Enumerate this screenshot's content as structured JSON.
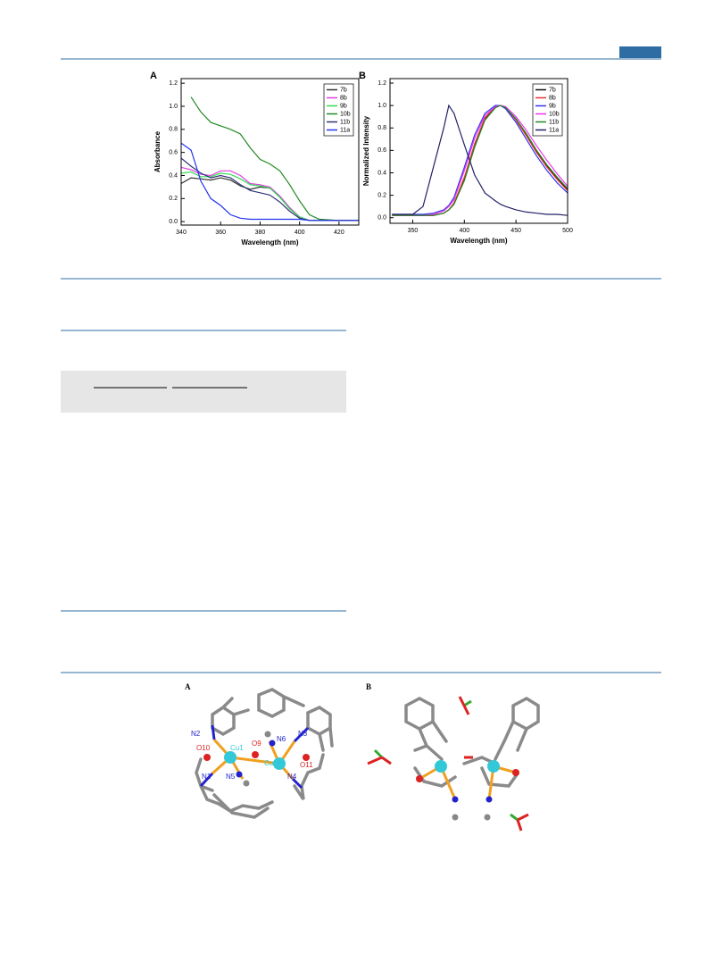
{
  "chart_data": [
    {
      "type": "line",
      "panel_label": "A",
      "x_label": "Wavelength (nm)",
      "y_label": "Absorbance",
      "x": [
        340,
        345,
        350,
        355,
        360,
        365,
        370,
        375,
        380,
        385,
        390,
        395,
        400,
        405,
        410,
        420,
        430
      ],
      "xlim": [
        340,
        430
      ],
      "xticks": [
        340,
        360,
        380,
        400,
        420
      ],
      "ylim": [
        -0.03,
        1.24
      ],
      "yticks": [
        {
          "value": 0,
          "label": "0.0"
        },
        0.2,
        0.4,
        0.6,
        0.8,
        {
          "value": 1,
          "label": "1.0"
        },
        1.2
      ],
      "legend": "upper right",
      "series": [
        {
          "name": "7b",
          "color": "#333333",
          "values": [
            0.33,
            0.38,
            0.37,
            0.36,
            0.38,
            0.36,
            0.31,
            0.28,
            0.3,
            0.29,
            0.22,
            0.12,
            0.04,
            0.01,
            0.01,
            0.01,
            0.01
          ]
        },
        {
          "name": "8b",
          "color": "#e040e0",
          "values": [
            0.47,
            0.45,
            0.41,
            0.4,
            0.44,
            0.44,
            0.4,
            0.33,
            0.32,
            0.3,
            0.22,
            0.12,
            0.04,
            0.01,
            0.01,
            0.01,
            0.01
          ]
        },
        {
          "name": "9b",
          "color": "#33dd55",
          "values": [
            0.42,
            0.43,
            0.39,
            0.39,
            0.42,
            0.41,
            0.37,
            0.32,
            0.31,
            0.29,
            0.21,
            0.11,
            0.04,
            0.01,
            0.01,
            0.01,
            0.01
          ]
        },
        {
          "name": "10b",
          "color": "#228822",
          "values": [
            null,
            1.08,
            0.95,
            0.86,
            0.83,
            0.8,
            0.76,
            0.64,
            0.54,
            0.5,
            0.44,
            0.32,
            0.18,
            0.06,
            0.02,
            0.01,
            0.01
          ]
        },
        {
          "name": "11b",
          "color": "#333377",
          "values": [
            0.55,
            0.48,
            0.42,
            0.38,
            0.4,
            0.38,
            0.32,
            0.27,
            0.25,
            0.23,
            0.17,
            0.09,
            0.03,
            0.01,
            0.01,
            0.01,
            0.01
          ]
        },
        {
          "name": "11a",
          "color": "#2233ee",
          "values": [
            0.68,
            0.62,
            0.35,
            0.2,
            0.14,
            0.06,
            0.03,
            0.02,
            0.02,
            0.02,
            0.02,
            0.02,
            0.02,
            0.01,
            0.01,
            0.01,
            0.01
          ]
        }
      ]
    },
    {
      "type": "line",
      "panel_label": "B",
      "x_label": "Wavelength (nm)",
      "y_label": "Normalized Intensity",
      "x": [
        330,
        340,
        350,
        360,
        370,
        380,
        385,
        390,
        400,
        410,
        420,
        430,
        435,
        440,
        450,
        460,
        470,
        480,
        490,
        500
      ],
      "xlim": [
        328,
        500
      ],
      "xticks": [
        350,
        400,
        450,
        500
      ],
      "ylim": [
        -0.05,
        1.24
      ],
      "yticks": [
        {
          "value": 0,
          "label": "0.0"
        },
        0.2,
        0.4,
        0.6,
        0.8,
        {
          "value": 1,
          "label": "1.0"
        },
        1.2
      ],
      "legend": "upper right",
      "series": [
        {
          "name": "7b",
          "color": "#111111",
          "values": [
            0.02,
            0.02,
            0.02,
            0.02,
            0.02,
            0.04,
            0.07,
            0.12,
            0.34,
            0.64,
            0.88,
            0.99,
            1.0,
            0.98,
            0.88,
            0.74,
            0.59,
            0.46,
            0.35,
            0.25
          ]
        },
        {
          "name": "8b",
          "color": "#ee3333",
          "values": [
            0.02,
            0.02,
            0.02,
            0.02,
            0.02,
            0.04,
            0.07,
            0.13,
            0.36,
            0.66,
            0.89,
            0.99,
            1.0,
            0.98,
            0.87,
            0.73,
            0.58,
            0.45,
            0.34,
            0.24
          ]
        },
        {
          "name": "9b",
          "color": "#3333ee",
          "values": [
            0.03,
            0.03,
            0.03,
            0.03,
            0.04,
            0.07,
            0.11,
            0.18,
            0.45,
            0.74,
            0.93,
            1.0,
            1.0,
            0.97,
            0.85,
            0.7,
            0.55,
            0.42,
            0.31,
            0.22
          ]
        },
        {
          "name": "10b",
          "color": "#ee33ee",
          "values": [
            0.02,
            0.02,
            0.02,
            0.02,
            0.03,
            0.06,
            0.1,
            0.16,
            0.42,
            0.71,
            0.91,
            0.99,
            1.0,
            0.99,
            0.9,
            0.78,
            0.64,
            0.51,
            0.39,
            0.28
          ]
        },
        {
          "name": "11b",
          "color": "#228822",
          "values": [
            0.02,
            0.02,
            0.02,
            0.02,
            0.02,
            0.04,
            0.07,
            0.12,
            0.33,
            0.63,
            0.87,
            0.98,
            1.0,
            0.98,
            0.88,
            0.75,
            0.6,
            0.47,
            0.36,
            0.26
          ]
        },
        {
          "name": "11a",
          "color": "#222266",
          "values": [
            0.03,
            0.03,
            0.03,
            0.1,
            0.45,
            0.8,
            1.0,
            0.93,
            0.65,
            0.38,
            0.22,
            0.15,
            0.12,
            0.1,
            0.07,
            0.05,
            0.04,
            0.03,
            0.03,
            0.02
          ]
        }
      ]
    }
  ],
  "structure_figure": {
    "panel_a": "A",
    "panel_b": "B",
    "atoms": [
      "N2",
      "Cu1",
      "O9",
      "N6",
      "N3",
      "O10",
      "Cu2",
      "O11",
      "N1",
      "N5",
      "N4"
    ]
  }
}
